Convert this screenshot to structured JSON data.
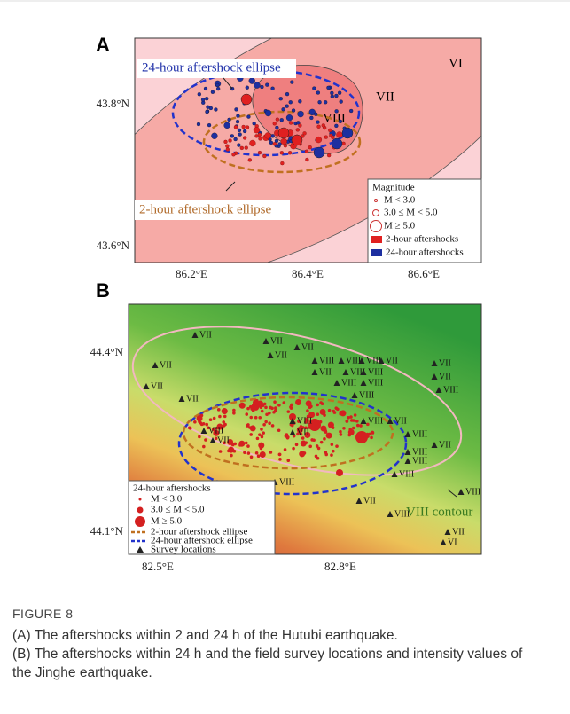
{
  "panel_a": {
    "label": "A",
    "intensities": [
      "VI",
      "VII",
      "VIII"
    ],
    "yticks": [
      "43.8°N",
      "43.6°N"
    ],
    "xticks": [
      "86.2°E",
      "86.4°E",
      "86.6°E"
    ],
    "ellipse_24h": "24-hour aftershock ellipse",
    "ellipse_2h": "2-hour aftershock ellipse",
    "legend": {
      "title": "Magnitude",
      "items": [
        "M < 3.0",
        "3.0 ≤ M < 5.0",
        "M ≥ 5.0",
        "2-hour aftershocks",
        "24-hour aftershocks"
      ]
    }
  },
  "panel_b": {
    "label": "B",
    "yticks": [
      "44.4°N",
      "44.1°N"
    ],
    "xticks": [
      "82.5°E",
      "82.8°E"
    ],
    "contour": "VIII contour",
    "survey_labels": [
      "VII",
      "VII",
      "VII",
      "VII",
      "VIII",
      "VIII",
      "VIII",
      "VII",
      "VII",
      "VIII",
      "VIII",
      "VIII",
      "VIII",
      "VIII",
      "VII",
      "VII",
      "VIII",
      "VII",
      "VII",
      "VII",
      "VIII",
      "VII",
      "VIII",
      "VII",
      "VIII",
      "VII",
      "VIII",
      "VII",
      "VIII",
      "VIII",
      "VIII",
      "VIII",
      "VII",
      "VIII",
      "VIII",
      "VII",
      "VI"
    ],
    "legend": {
      "title": "24-hour aftershocks",
      "items": [
        "M < 3.0",
        "3.0 ≤ M < 5.0",
        "M ≥ 5.0",
        "2-hour aftershock ellipse",
        "24-hour aftershock ellipse",
        "Survey locations"
      ]
    }
  },
  "caption": {
    "figure": "FIGURE 8",
    "a": "(A) The aftershocks within 2 and 24 h of the Hutubi earthquake.",
    "b": "(B) The aftershocks within 24 h and the field survey locations and intensity values of the Jinghe earthquake."
  }
}
